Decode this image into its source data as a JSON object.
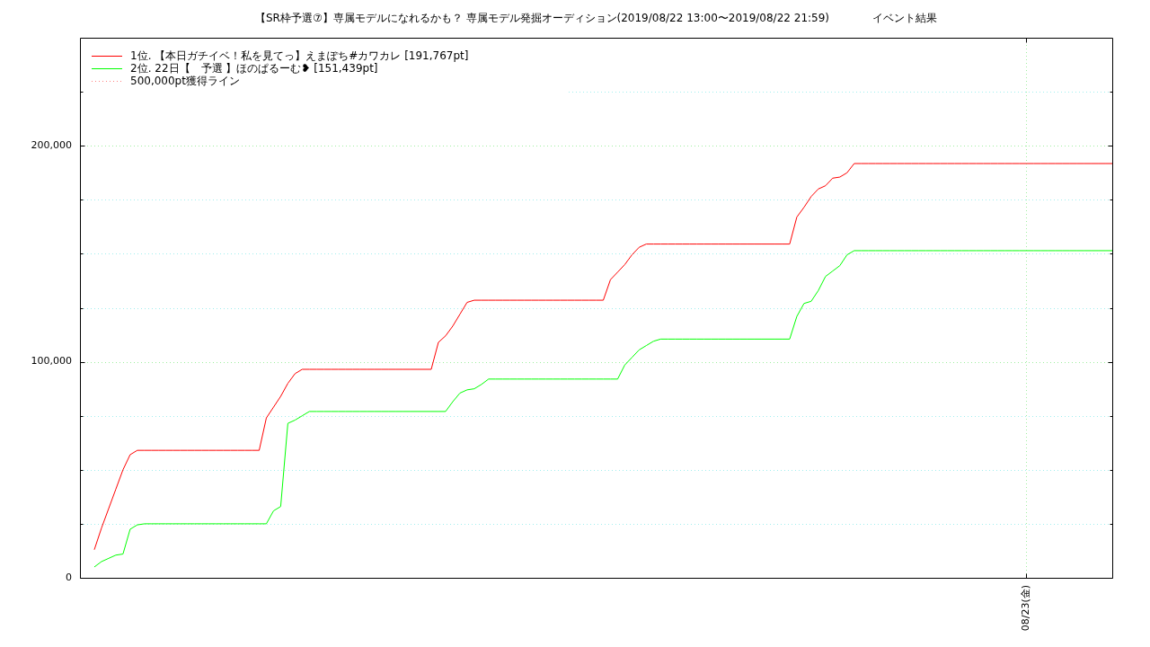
{
  "chart_data": {
    "type": "line",
    "title": "【SR枠予選⑦】専属モデルになれるかも？ 専属モデル発掘オーディション(2019/08/22 13:00〜2019/08/22 21:59)　　　　イベント結果",
    "categories": [
      null,
      null,
      null,
      null,
      null,
      null,
      null,
      null,
      null,
      null,
      null,
      null,
      null,
      null,
      null,
      null,
      null,
      null,
      null,
      null,
      null,
      null,
      null,
      null,
      null,
      null,
      null,
      null,
      null,
      null,
      null,
      null,
      null,
      null,
      null,
      null,
      null,
      null,
      null,
      null,
      null,
      null,
      null,
      null,
      null,
      null,
      null,
      null,
      null,
      null,
      null,
      null,
      null,
      null,
      null,
      null,
      null,
      null,
      null,
      null,
      null,
      null,
      null,
      null,
      null,
      null,
      null,
      null,
      null,
      null,
      null,
      null,
      null,
      null,
      null,
      null,
      null,
      null,
      null,
      null,
      null,
      null,
      null,
      null,
      null,
      null,
      null,
      null,
      null,
      null,
      null,
      null,
      null,
      null,
      null,
      null,
      null,
      null,
      null,
      null,
      null,
      null,
      null,
      null,
      null,
      null,
      null,
      null,
      null,
      null,
      null,
      null,
      null,
      null,
      null,
      null,
      null,
      null,
      null,
      null,
      null,
      null,
      null,
      null,
      null,
      null,
      null,
      null,
      null,
      null,
      null,
      null,
      "08/23(金)",
      null,
      null,
      null,
      null,
      null,
      null,
      null,
      null,
      null,
      null,
      null,
      null
    ],
    "ylim": [
      0,
      250000
    ],
    "yticks": [
      {
        "value": 0,
        "label": "0"
      },
      {
        "value": 25000,
        "label": null
      },
      {
        "value": 50000,
        "label": null
      },
      {
        "value": 75000,
        "label": null
      },
      {
        "value": 100000,
        "label": "100,000"
      },
      {
        "value": 125000,
        "label": null
      },
      {
        "value": 150000,
        "label": null
      },
      {
        "value": 175000,
        "label": null
      },
      {
        "value": 200000,
        "label": "200,000"
      },
      {
        "value": 225000,
        "label": null
      }
    ],
    "grid": true,
    "legend": "top left",
    "series": [
      {
        "name": "1位. 【本日ガチイベ！私を見てっ】えまぽち#カワカレ [191,767pt]",
        "color": "#ff0000",
        "values": [
          null,
          null,
          13000,
          23000,
          32000,
          41000,
          50000,
          57000,
          59000,
          59000,
          59000,
          59000,
          59000,
          59000,
          59000,
          59000,
          59000,
          59000,
          59000,
          59000,
          59000,
          59000,
          59000,
          59000,
          59000,
          59000,
          74000,
          79000,
          84000,
          90000,
          94500,
          96500,
          96500,
          96500,
          96500,
          96500,
          96500,
          96500,
          96500,
          96500,
          96500,
          96500,
          96500,
          96500,
          96500,
          96500,
          96500,
          96500,
          96500,
          96500,
          109000,
          112000,
          116500,
          122000,
          127500,
          128500,
          128500,
          128500,
          128500,
          128500,
          128500,
          128500,
          128500,
          128500,
          128500,
          128500,
          128500,
          128500,
          128500,
          128500,
          128500,
          128500,
          128500,
          128500,
          138000,
          141500,
          145000,
          149500,
          153000,
          154500,
          154500,
          154500,
          154500,
          154500,
          154500,
          154500,
          154500,
          154500,
          154500,
          154500,
          154500,
          154500,
          154500,
          154500,
          154500,
          154500,
          154500,
          154500,
          154500,
          154500,
          167000,
          171500,
          176500,
          180000,
          181500,
          185000,
          185500,
          187500,
          191767,
          191767,
          191767,
          191767,
          191767,
          191767,
          191767,
          191767,
          191767,
          191767,
          191767,
          191767,
          191767,
          191767,
          191767,
          191767,
          191767,
          191767,
          191767,
          191767,
          191767,
          191767,
          191767,
          191767,
          191767,
          191767,
          191767,
          191767,
          191767,
          191767,
          191767,
          191767,
          191767,
          191767,
          191767,
          191767,
          191767
        ]
      },
      {
        "name": "2位. 22日【　予選 】ほのぱるーむ❥ [151,439pt]",
        "color": "#00ff00",
        "values": [
          null,
          null,
          5000,
          7500,
          9000,
          10500,
          11000,
          22500,
          24500,
          25000,
          25000,
          25000,
          25000,
          25000,
          25000,
          25000,
          25000,
          25000,
          25000,
          25000,
          25000,
          25000,
          25000,
          25000,
          25000,
          25000,
          25000,
          31000,
          33000,
          71500,
          73000,
          75000,
          77000,
          77000,
          77000,
          77000,
          77000,
          77000,
          77000,
          77000,
          77000,
          77000,
          77000,
          77000,
          77000,
          77000,
          77000,
          77000,
          77000,
          77000,
          77000,
          77000,
          81500,
          85500,
          87000,
          87500,
          89500,
          92000,
          92000,
          92000,
          92000,
          92000,
          92000,
          92000,
          92000,
          92000,
          92000,
          92000,
          92000,
          92000,
          92000,
          92000,
          92000,
          92000,
          92000,
          92000,
          98500,
          102000,
          105500,
          107500,
          109500,
          110500,
          110500,
          110500,
          110500,
          110500,
          110500,
          110500,
          110500,
          110500,
          110500,
          110500,
          110500,
          110500,
          110500,
          110500,
          110500,
          110500,
          110500,
          110500,
          121000,
          127000,
          128000,
          133000,
          139500,
          142000,
          144500,
          149500,
          151439,
          151439,
          151439,
          151439,
          151439,
          151439,
          151439,
          151439,
          151439,
          151439,
          151439,
          151439,
          151439,
          151439,
          151439,
          151439,
          151439,
          151439,
          151439,
          151439,
          151439,
          151439,
          151439,
          151439,
          151439,
          151439,
          151439,
          151439,
          151439,
          151439,
          151439,
          151439,
          151439,
          151439,
          151439,
          151439,
          151439
        ]
      },
      {
        "name": "500,000pt獲得ライン",
        "color": "#ff8080",
        "line_style": "dotted",
        "values": [
          null,
          null,
          null,
          null,
          null,
          null,
          null,
          null,
          null,
          null,
          null,
          null,
          null,
          null,
          null,
          null,
          null,
          null,
          null,
          null,
          null,
          null,
          null,
          null,
          null,
          null,
          null,
          null,
          null,
          null,
          null,
          null,
          null,
          null,
          null,
          null,
          null,
          null,
          null,
          null,
          null,
          null,
          null,
          null,
          null,
          null,
          null,
          null,
          null,
          null,
          null,
          null,
          null,
          null,
          null,
          null,
          null,
          null,
          null,
          null,
          null,
          null,
          null,
          null,
          null,
          null,
          null,
          null,
          null,
          null,
          null,
          null,
          null,
          null,
          null,
          null,
          null,
          null,
          null,
          null,
          null,
          null,
          null,
          null,
          null,
          null,
          null,
          null,
          null,
          null,
          null,
          null,
          null,
          null,
          null,
          null,
          null,
          null,
          null,
          null,
          null,
          null,
          null,
          null,
          null,
          null,
          null,
          null,
          null,
          null,
          null,
          null,
          null,
          null,
          null,
          null,
          null,
          null,
          null,
          null,
          null,
          null,
          null,
          null,
          null,
          null,
          null,
          null,
          null,
          null,
          null,
          null,
          null,
          null,
          null,
          null,
          null,
          null,
          null,
          null,
          null,
          null,
          null,
          null,
          null
        ]
      }
    ]
  }
}
